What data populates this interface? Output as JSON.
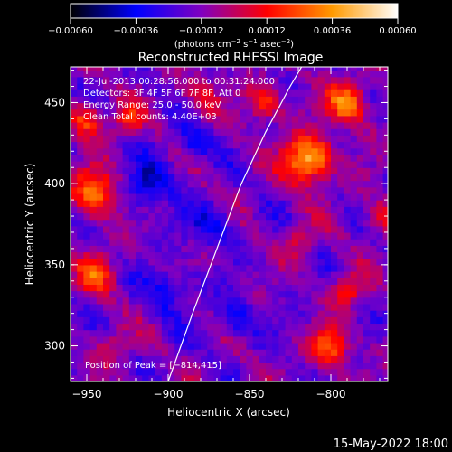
{
  "chart_data": {
    "type": "heatmap",
    "title": "Reconstructed RHESSI Image",
    "xlabel": "Heliocentric X (arcsec)",
    "ylabel": "Heliocentric Y (arcsec)",
    "xlim": [
      -960,
      -765
    ],
    "ylim": [
      278,
      472
    ],
    "x_ticks": [
      -950,
      -900,
      -850,
      -800
    ],
    "y_ticks": [
      300,
      350,
      400,
      450
    ],
    "x_tick_labels": [
      "−950",
      "−900",
      "−850",
      "−800"
    ],
    "y_tick_labels": [
      "300",
      "350",
      "400",
      "450"
    ],
    "colorbar": {
      "range": [
        -0.0006,
        0.0006
      ],
      "ticks": [
        -0.0006,
        -0.00036,
        -0.00012,
        0.00012,
        0.00036,
        0.0006
      ],
      "tick_labels": [
        "−0.00060",
        "−0.00036",
        "−0.00012",
        "0.00012",
        "0.00036",
        "0.00060"
      ],
      "colormap_stops": [
        "#000000",
        "#0000ff",
        "#8000c0",
        "#ff0000",
        "#ff9a00",
        "#ffffff"
      ]
    },
    "units": [
      "(photons cm",
      "−2",
      " s",
      "−1",
      " asec",
      "−2",
      ")"
    ],
    "annotations": [
      "22-Jul-2013 00:28:56.000 to 00:31:24.000",
      "Detectors: 3F 4F 5F 6F 7F 8F, Att 0",
      "Energy Range: 25.0 - 50.0 keV",
      "Clean    Total counts: 4.40E+03"
    ],
    "peak_label": "Position of Peak = [−814,415]",
    "peak_position": [
      -814,
      415
    ],
    "limb_curve": [
      [
        -900,
        278
      ],
      [
        -885,
        320
      ],
      [
        -870,
        360
      ],
      [
        -855,
        400
      ],
      [
        -840,
        432
      ],
      [
        -825,
        460
      ],
      [
        -818,
        472
      ]
    ],
    "bright_sources": [
      {
        "x": -814,
        "y": 415,
        "amp": 0.0006,
        "r": 10
      },
      {
        "x": -790,
        "y": 450,
        "amp": 0.00045,
        "r": 9
      },
      {
        "x": -945,
        "y": 395,
        "amp": 0.00045,
        "r": 10
      },
      {
        "x": -950,
        "y": 440,
        "amp": 0.00035,
        "r": 7
      },
      {
        "x": -945,
        "y": 345,
        "amp": 0.00035,
        "r": 8
      },
      {
        "x": -840,
        "y": 450,
        "amp": 0.0003,
        "r": 8
      },
      {
        "x": -800,
        "y": 300,
        "amp": 0.0004,
        "r": 8
      },
      {
        "x": -790,
        "y": 335,
        "amp": 0.0003,
        "r": 7
      },
      {
        "x": -925,
        "y": 440,
        "amp": 0.00025,
        "r": 7
      },
      {
        "x": -880,
        "y": 455,
        "amp": 0.0002,
        "r": 8
      },
      {
        "x": -770,
        "y": 380,
        "amp": 0.00025,
        "r": 7
      },
      {
        "x": -820,
        "y": 365,
        "amp": 0.0002,
        "r": 7
      },
      {
        "x": -935,
        "y": 300,
        "amp": 0.00015,
        "r": 8
      }
    ],
    "dark_sources": [
      {
        "x": -912,
        "y": 400,
        "amp": -0.0003,
        "r": 10
      },
      {
        "x": -875,
        "y": 375,
        "amp": -0.00022,
        "r": 9
      },
      {
        "x": -900,
        "y": 335,
        "amp": -0.0002,
        "r": 10
      },
      {
        "x": -858,
        "y": 318,
        "amp": -0.0002,
        "r": 9
      },
      {
        "x": -885,
        "y": 425,
        "amp": -0.0002,
        "r": 8
      }
    ],
    "footer_date": "15-May-2022 18:00"
  }
}
